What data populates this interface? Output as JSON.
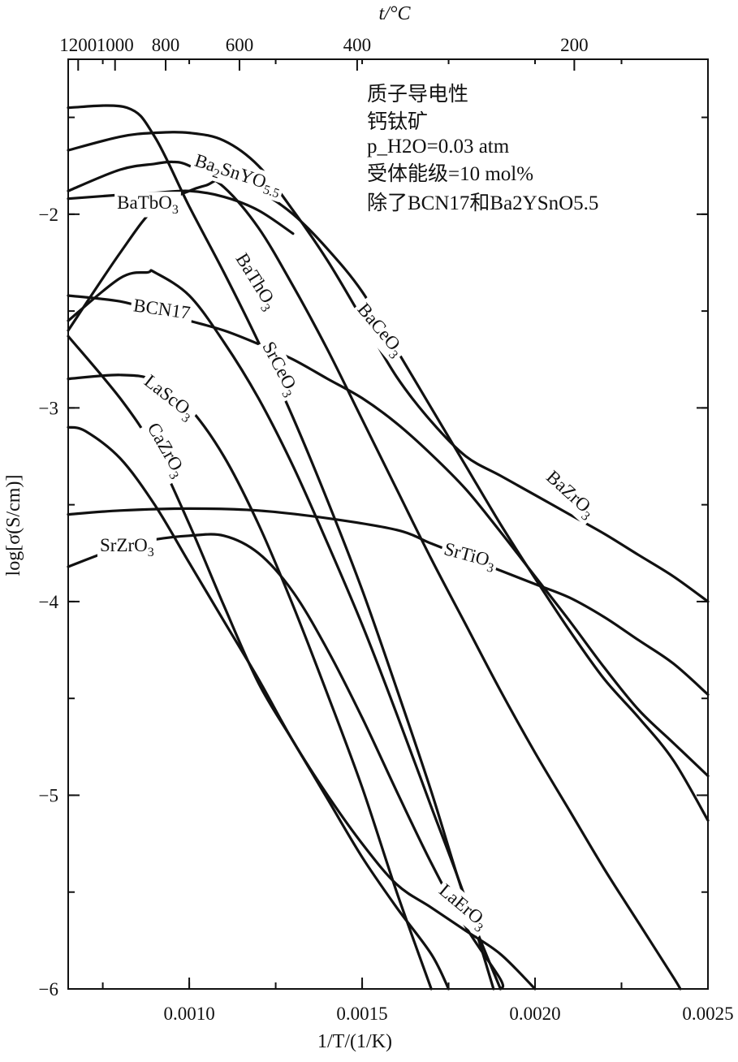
{
  "chart_data": {
    "type": "line",
    "xlabel": "1/T/(1/K)",
    "ylabel": "log[σ(S/cm)]",
    "top_axis_label": "t/°C",
    "xlim": [
      0.00065,
      0.0025
    ],
    "ylim": [
      -6,
      -1.2
    ],
    "x_ticks": [
      0.001,
      0.0015,
      0.002,
      0.0025
    ],
    "x_tick_labels": [
      "0.0010",
      "0.0015",
      "0.0020",
      "0.0025"
    ],
    "x_minor_step": 0.00025,
    "y_ticks": [
      -6,
      -5,
      -4,
      -3,
      -2
    ],
    "y_tick_labels": [
      "−6",
      "−5",
      "−4",
      "−3",
      "−2"
    ],
    "y_minor_step": 0.5,
    "top_ticks_celsius": [
      1200,
      1000,
      800,
      600,
      400,
      200
    ],
    "top_tick_labels": [
      "1200",
      "1000",
      "800",
      "600",
      "400",
      "200"
    ],
    "grid": false,
    "legend": {
      "placement": "top-right",
      "lines": [
        "质子导电性",
        "钙钛矿",
        "p_H2O=0.03 atm",
        "受体能级=10 mol%",
        "除了BCN17和Ba2YSnO5.5"
      ]
    },
    "series": [
      {
        "name": "BaZrO3",
        "label_parts": [
          "BaZrO",
          "3",
          ""
        ],
        "label_at": [
          0.0021,
          -3.45
        ],
        "label_angle": 42,
        "points": [
          [
            0.00065,
            -1.67
          ],
          [
            0.0008,
            -1.6
          ],
          [
            0.0009,
            -1.58
          ],
          [
            0.001,
            -1.58
          ],
          [
            0.0011,
            -1.62
          ],
          [
            0.0012,
            -1.75
          ],
          [
            0.0013,
            -1.98
          ],
          [
            0.0014,
            -2.24
          ],
          [
            0.0015,
            -2.54
          ],
          [
            0.0016,
            -2.84
          ],
          [
            0.0017,
            -3.07
          ],
          [
            0.0018,
            -3.25
          ],
          [
            0.0019,
            -3.35
          ],
          [
            0.002,
            -3.45
          ],
          [
            0.0021,
            -3.55
          ],
          [
            0.0022,
            -3.65
          ],
          [
            0.0023,
            -3.76
          ],
          [
            0.0024,
            -3.87
          ],
          [
            0.0025,
            -4.0
          ]
        ]
      },
      {
        "name": "Ba2SnYO5.5",
        "label_parts": [
          "Ba",
          "2",
          "SnYO",
          "5.5"
        ],
        "label_at": [
          0.00114,
          -1.8
        ],
        "label_angle": 18,
        "points": [
          [
            0.00065,
            -2.6
          ],
          [
            0.0008,
            -2.2
          ],
          [
            0.0009,
            -1.97
          ],
          [
            0.001,
            -1.88
          ],
          [
            0.00105,
            -1.85
          ],
          [
            0.0011,
            -1.82
          ],
          [
            0.0012,
            -1.88
          ],
          [
            0.0013,
            -2.0
          ],
          [
            0.0014,
            -2.18
          ],
          [
            0.0015,
            -2.4
          ],
          [
            0.0016,
            -2.7
          ],
          [
            0.0017,
            -3.0
          ],
          [
            0.0018,
            -3.3
          ],
          [
            0.0019,
            -3.6
          ],
          [
            0.002,
            -3.88
          ],
          [
            0.0021,
            -4.15
          ],
          [
            0.0022,
            -4.4
          ],
          [
            0.0023,
            -4.6
          ],
          [
            0.0024,
            -4.82
          ],
          [
            0.0025,
            -5.13
          ]
        ]
      },
      {
        "name": "BaTbO3",
        "label_parts": [
          "BaTbO",
          "3",
          ""
        ],
        "label_at": [
          0.00088,
          -1.95
        ],
        "label_angle": 0,
        "points": [
          [
            0.00065,
            -1.92
          ],
          [
            0.0008,
            -1.9
          ],
          [
            0.0009,
            -1.89
          ],
          [
            0.001,
            -1.88
          ],
          [
            0.0011,
            -1.91
          ],
          [
            0.0012,
            -1.98
          ],
          [
            0.0013,
            -2.1
          ]
        ]
      },
      {
        "name": "BaCeO3",
        "label_parts": [
          "BaCeO",
          "3",
          ""
        ],
        "label_at": [
          0.00155,
          -2.6
        ],
        "label_angle": 50,
        "points": [
          [
            0.00065,
            -1.88
          ],
          [
            0.0008,
            -1.77
          ],
          [
            0.0009,
            -1.74
          ],
          [
            0.00095,
            -1.73
          ],
          [
            0.001,
            -1.75
          ],
          [
            0.0011,
            -1.86
          ],
          [
            0.0012,
            -2.07
          ],
          [
            0.0013,
            -2.37
          ],
          [
            0.0014,
            -2.7
          ],
          [
            0.0015,
            -3.06
          ],
          [
            0.0016,
            -3.42
          ],
          [
            0.0017,
            -3.78
          ],
          [
            0.0018,
            -4.12
          ],
          [
            0.0019,
            -4.46
          ],
          [
            0.002,
            -4.78
          ],
          [
            0.0021,
            -5.08
          ],
          [
            0.0022,
            -5.38
          ],
          [
            0.0023,
            -5.66
          ],
          [
            0.0024,
            -5.94
          ],
          [
            0.00242,
            -6.0
          ]
        ]
      },
      {
        "name": "BaThO3",
        "label_parts": [
          "BaThO",
          "3",
          ""
        ],
        "label_at": [
          0.00119,
          -2.35
        ],
        "label_angle": 58,
        "points": [
          [
            0.00065,
            -1.45
          ],
          [
            0.00082,
            -1.45
          ],
          [
            0.0009,
            -1.6
          ],
          [
            0.001,
            -1.96
          ],
          [
            0.0011,
            -2.3
          ],
          [
            0.0012,
            -2.66
          ],
          [
            0.0013,
            -3.05
          ],
          [
            0.0014,
            -3.48
          ],
          [
            0.0015,
            -3.94
          ],
          [
            0.0016,
            -4.45
          ],
          [
            0.0017,
            -4.98
          ],
          [
            0.0018,
            -5.55
          ],
          [
            0.0019,
            -6.0
          ]
        ]
      },
      {
        "name": "BCN17",
        "label_parts": [
          "BCN17",
          "",
          ""
        ],
        "label_at": [
          0.00092,
          -2.5
        ],
        "label_angle": 8,
        "points": [
          [
            0.00065,
            -2.42
          ],
          [
            0.0008,
            -2.45
          ],
          [
            0.0009,
            -2.5
          ],
          [
            0.001,
            -2.55
          ],
          [
            0.0011,
            -2.6
          ],
          [
            0.0012,
            -2.67
          ],
          [
            0.0013,
            -2.75
          ],
          [
            0.0014,
            -2.85
          ],
          [
            0.0015,
            -2.95
          ],
          [
            0.0016,
            -3.08
          ],
          [
            0.0017,
            -3.24
          ],
          [
            0.0018,
            -3.42
          ],
          [
            0.0019,
            -3.64
          ],
          [
            0.002,
            -3.87
          ],
          [
            0.0021,
            -4.1
          ],
          [
            0.0022,
            -4.34
          ],
          [
            0.0023,
            -4.56
          ],
          [
            0.0024,
            -4.73
          ],
          [
            0.0025,
            -4.9
          ]
        ]
      },
      {
        "name": "SrCeO3",
        "label_parts": [
          "SrCeO",
          "3",
          ""
        ],
        "label_at": [
          0.00126,
          -2.8
        ],
        "label_angle": 62,
        "points": [
          [
            0.00065,
            -2.55
          ],
          [
            0.0008,
            -2.33
          ],
          [
            0.00088,
            -2.3
          ],
          [
            0.0009,
            -2.3
          ],
          [
            0.001,
            -2.42
          ],
          [
            0.0011,
            -2.66
          ],
          [
            0.0012,
            -2.95
          ],
          [
            0.0013,
            -3.3
          ],
          [
            0.0014,
            -3.7
          ],
          [
            0.0015,
            -4.12
          ],
          [
            0.0016,
            -4.58
          ],
          [
            0.0017,
            -5.06
          ],
          [
            0.0018,
            -5.54
          ],
          [
            0.00188,
            -6.0
          ]
        ]
      },
      {
        "name": "LaScO3",
        "label_parts": [
          "LaScO",
          "3",
          ""
        ],
        "label_at": [
          0.00094,
          -2.95
        ],
        "label_angle": 38,
        "points": [
          [
            0.00065,
            -2.85
          ],
          [
            0.0008,
            -2.83
          ],
          [
            0.0009,
            -2.86
          ],
          [
            0.001,
            -3.0
          ],
          [
            0.0011,
            -3.25
          ],
          [
            0.0012,
            -3.6
          ],
          [
            0.0013,
            -4.02
          ],
          [
            0.0014,
            -4.48
          ],
          [
            0.0015,
            -4.96
          ],
          [
            0.0016,
            -5.5
          ],
          [
            0.0017,
            -6.0
          ]
        ]
      },
      {
        "name": "CaZrO3",
        "label_parts": [
          "CaZrO",
          "3",
          ""
        ],
        "label_at": [
          0.00093,
          -3.22
        ],
        "label_angle": 60,
        "points": [
          [
            0.00065,
            -2.63
          ],
          [
            0.0008,
            -2.95
          ],
          [
            0.0009,
            -3.22
          ],
          [
            0.001,
            -3.6
          ],
          [
            0.0011,
            -4.02
          ],
          [
            0.0012,
            -4.42
          ],
          [
            0.0013,
            -4.72
          ],
          [
            0.0014,
            -5.02
          ],
          [
            0.0015,
            -5.32
          ],
          [
            0.0016,
            -5.58
          ],
          [
            0.0017,
            -5.82
          ],
          [
            0.00175,
            -6.0
          ]
        ]
      },
      {
        "name": "SrTiO3",
        "label_parts": [
          "SrTiO",
          "3",
          ""
        ],
        "label_at": [
          0.00181,
          -3.77
        ],
        "label_angle": 15,
        "points": [
          [
            0.00065,
            -3.55
          ],
          [
            0.0008,
            -3.53
          ],
          [
            0.001,
            -3.52
          ],
          [
            0.0012,
            -3.53
          ],
          [
            0.0014,
            -3.57
          ],
          [
            0.0016,
            -3.63
          ],
          [
            0.0017,
            -3.7
          ],
          [
            0.0018,
            -3.77
          ],
          [
            0.0019,
            -3.84
          ],
          [
            0.002,
            -3.91
          ],
          [
            0.0021,
            -3.98
          ],
          [
            0.0022,
            -4.08
          ],
          [
            0.0023,
            -4.2
          ],
          [
            0.0024,
            -4.32
          ],
          [
            0.0025,
            -4.48
          ]
        ]
      },
      {
        "name": "SrZrO3",
        "label_parts": [
          "SrZrO",
          "3",
          ""
        ],
        "label_at": [
          0.00082,
          -3.72
        ],
        "label_angle": 0,
        "points": [
          [
            0.00065,
            -3.82
          ],
          [
            0.0008,
            -3.72
          ],
          [
            0.0009,
            -3.68
          ],
          [
            0.001,
            -3.66
          ],
          [
            0.0011,
            -3.66
          ],
          [
            0.0012,
            -3.75
          ],
          [
            0.0013,
            -3.95
          ],
          [
            0.0014,
            -4.25
          ],
          [
            0.0015,
            -4.6
          ],
          [
            0.0016,
            -4.98
          ],
          [
            0.0017,
            -5.35
          ],
          [
            0.0018,
            -5.68
          ],
          [
            0.0019,
            -5.95
          ],
          [
            0.0019,
            -6.0
          ]
        ]
      },
      {
        "name": "LaErO3",
        "label_parts": [
          "LaErO",
          "3",
          ""
        ],
        "label_at": [
          0.00179,
          -5.58
        ],
        "label_angle": 40,
        "points": [
          [
            0.00065,
            -3.1
          ],
          [
            0.0007,
            -3.12
          ],
          [
            0.0008,
            -3.26
          ],
          [
            0.0009,
            -3.5
          ],
          [
            0.001,
            -3.8
          ],
          [
            0.0011,
            -4.1
          ],
          [
            0.0012,
            -4.4
          ],
          [
            0.0013,
            -4.72
          ],
          [
            0.0014,
            -5.0
          ],
          [
            0.0015,
            -5.25
          ],
          [
            0.0016,
            -5.46
          ],
          [
            0.0017,
            -5.58
          ],
          [
            0.0018,
            -5.7
          ],
          [
            0.0019,
            -5.82
          ],
          [
            0.002,
            -6.0
          ]
        ]
      }
    ]
  }
}
